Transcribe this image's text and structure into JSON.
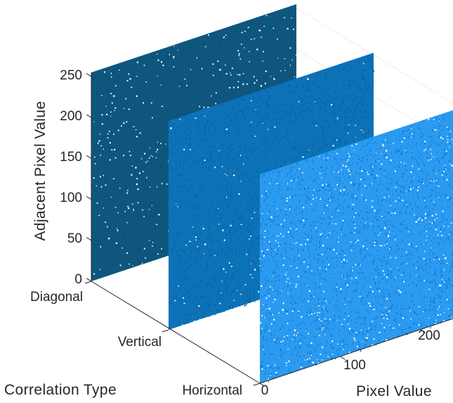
{
  "figure": {
    "background": "#ffffff",
    "text_color": "#262626",
    "axis_color": "#262626",
    "grid_color": "#cbcbcb"
  },
  "chart_data": {
    "type": "scatter",
    "projection": "3d",
    "title": "",
    "xlabel": "Pixel Value",
    "ylabel": "Correlation Type",
    "zlabel": "Adjacent Pixel Value",
    "x_ticks": [
      "0",
      "100",
      "200"
    ],
    "z_ticks": [
      "0",
      "50",
      "100",
      "150",
      "200",
      "250"
    ],
    "y_categories": [
      "Diagonal",
      "Vertical",
      "Horizontal"
    ],
    "x_range": [
      0,
      255
    ],
    "z_range": [
      0,
      255
    ],
    "grid": "dotted wall gridlines at z ticks, visible between planes",
    "legend_position": "none",
    "description": "Adjacent-pixel correlation plot: for each correlation type (Diagonal, Vertical, Horizontal) a dense uniform scatter of (pixel value, adjacent pixel value) pairs fills the full 0-255 x 0-255 plane, indicating near-zero correlation between adjacent pixels.",
    "series": [
      {
        "name": "Diagonal",
        "color": "#0e567d",
        "speckle_dark_color": "#0a4566",
        "x_span": [
          0,
          255
        ],
        "z_span": [
          0,
          255
        ],
        "coverage": "dense uniform scatter with sparse white gaps",
        "white_dots": 380,
        "dark_dots": 140
      },
      {
        "name": "Vertical",
        "color": "#0d73b8",
        "speckle_dark_color": "#0b63a0",
        "x_span": [
          0,
          255
        ],
        "z_span": [
          0,
          255
        ],
        "coverage": "dense uniform scatter, heavy dark mottling, white gaps near bottom",
        "white_dots": 150,
        "dark_dots": 3600
      },
      {
        "name": "Horizontal",
        "color": "#2a9bf0",
        "speckle_dark_color": "#1578cc",
        "x_span": [
          0,
          255
        ],
        "z_span": [
          0,
          255
        ],
        "coverage": "dense uniform scatter with white gaps and dark mottling",
        "white_dots": 540,
        "dark_dots": 2400
      }
    ]
  }
}
